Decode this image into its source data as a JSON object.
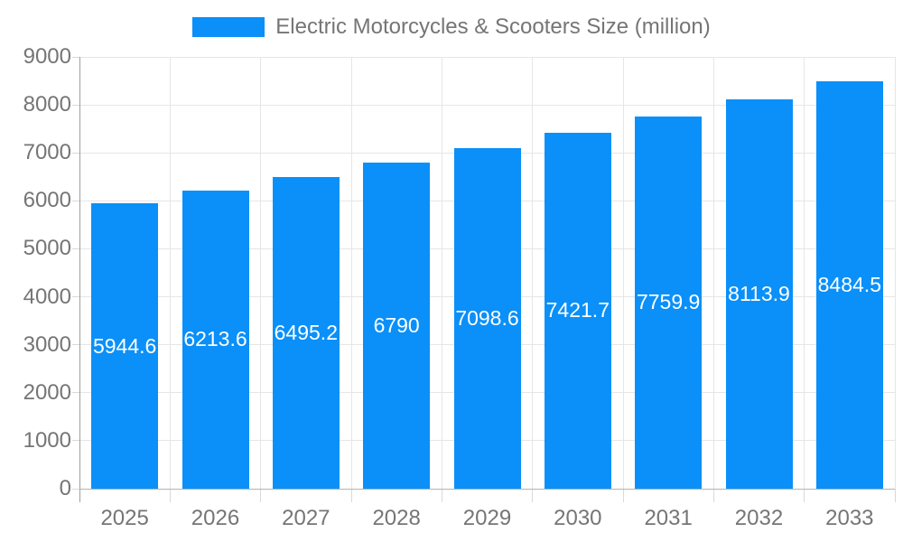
{
  "legend": {
    "label": "Electric Motorcycles & Scooters Size (million)"
  },
  "chart_data": {
    "type": "bar",
    "title": "Electric Motorcycles & Scooters Size (million)",
    "categories": [
      "2025",
      "2026",
      "2027",
      "2028",
      "2029",
      "2030",
      "2031",
      "2032",
      "2033"
    ],
    "series": [
      {
        "name": "Electric Motorcycles & Scooters Size (million)",
        "values": [
          5944.6,
          6213.6,
          6495.2,
          6790,
          7098.6,
          7421.7,
          7759.9,
          8113.9,
          8484.5
        ]
      }
    ],
    "value_labels": [
      "5944.6",
      "6213.6",
      "6495.2",
      "6790",
      "7098.6",
      "7421.7",
      "7759.9",
      "8113.9",
      "8484.5"
    ],
    "xlabel": "",
    "ylabel": "",
    "ylim": [
      0,
      9000
    ],
    "ytick_step": 1000,
    "ytick_labels": [
      "0",
      "1000",
      "2000",
      "3000",
      "4000",
      "5000",
      "6000",
      "7000",
      "8000",
      "9000"
    ],
    "grid": true,
    "legend_position": "top-center",
    "colors": {
      "bar": "#0a90f8",
      "value_text": "#ffffff",
      "axis_text": "#757575",
      "gridline": "#e6e6e6",
      "baseline": "#b3b3b3",
      "axis_line": "#9e9e9e",
      "tick": "#d9d9d9",
      "background": "#ffffff"
    }
  }
}
